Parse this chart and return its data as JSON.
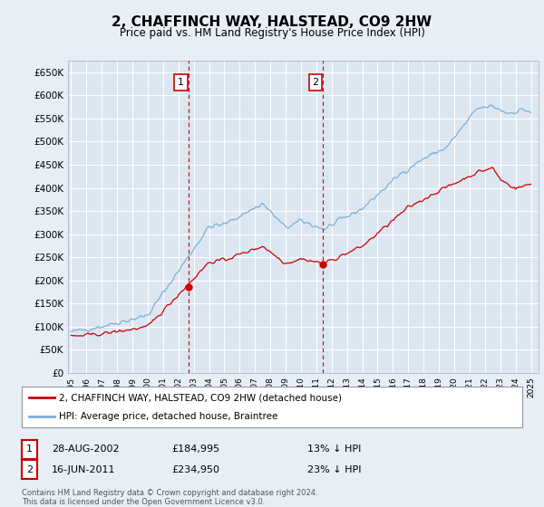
{
  "title": "2, CHAFFINCH WAY, HALSTEAD, CO9 2HW",
  "subtitle": "Price paid vs. HM Land Registry's House Price Index (HPI)",
  "background_color": "#e8eef5",
  "plot_bg_color": "#dce6f1",
  "grid_color": "#ffffff",
  "hpi_color": "#7ab0d4",
  "price_color": "#cc0000",
  "sale1_x": 2002.65,
  "sale1_y": 184995,
  "sale2_x": 2011.45,
  "sale2_y": 234950,
  "sale1_date": "28-AUG-2002",
  "sale1_price": "£184,995",
  "sale1_note": "13% ↓ HPI",
  "sale2_date": "16-JUN-2011",
  "sale2_price": "£234,950",
  "sale2_note": "23% ↓ HPI",
  "xmin": 1994.8,
  "xmax": 2025.5,
  "ymin": 0,
  "ymax": 675000,
  "yticks": [
    0,
    50000,
    100000,
    150000,
    200000,
    250000,
    300000,
    350000,
    400000,
    450000,
    500000,
    550000,
    600000,
    650000
  ],
  "ytick_labels": [
    "£0",
    "£50K",
    "£100K",
    "£150K",
    "£200K",
    "£250K",
    "£300K",
    "£350K",
    "£400K",
    "£450K",
    "£500K",
    "£550K",
    "£600K",
    "£650K"
  ],
  "xticks": [
    1995,
    1996,
    1997,
    1998,
    1999,
    2000,
    2001,
    2002,
    2003,
    2004,
    2005,
    2006,
    2007,
    2008,
    2009,
    2010,
    2011,
    2012,
    2013,
    2014,
    2015,
    2016,
    2017,
    2018,
    2019,
    2020,
    2021,
    2022,
    2023,
    2024,
    2025
  ],
  "legend1_label": "2, CHAFFINCH WAY, HALSTEAD, CO9 2HW (detached house)",
  "legend2_label": "HPI: Average price, detached house, Braintree",
  "footer": "Contains HM Land Registry data © Crown copyright and database right 2024.\nThis data is licensed under the Open Government Licence v3.0."
}
